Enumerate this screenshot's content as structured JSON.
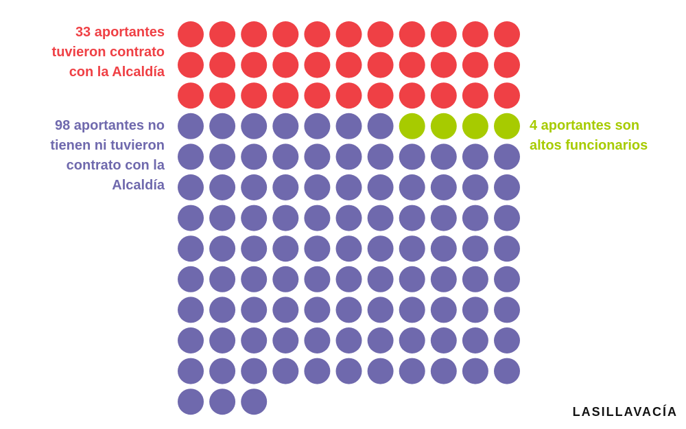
{
  "chart_data": {
    "type": "waffle",
    "columns": 11,
    "series": [
      {
        "name": "33 aportantes tuvieron contrato con la Alcaldía",
        "color": "#ef4045",
        "values": [
          33
        ]
      },
      {
        "name": "98 aportantes no tienen ni tuvieron contrato con la Alcaldía",
        "color": "#6f69ad",
        "values": [
          98
        ]
      },
      {
        "name": "4 aportantes son altos funcionarios",
        "color": "#a7cb00",
        "values": [
          4
        ]
      }
    ],
    "logo": "LASILLAVACÍA"
  }
}
